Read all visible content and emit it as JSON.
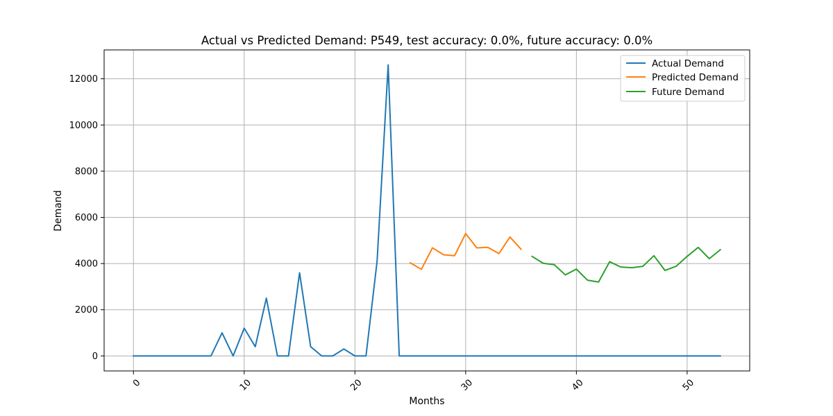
{
  "chart_data": {
    "type": "line",
    "title": "Actual vs Predicted Demand: P549, test accuracy: 0.0%, future accuracy: 0.0%",
    "xlabel": "Months",
    "ylabel": "Demand",
    "xlim": [
      -2.65,
      55.65
    ],
    "ylim": [
      -650,
      13250
    ],
    "xticks": [
      0,
      10,
      20,
      30,
      40,
      50
    ],
    "yticks": [
      0,
      2000,
      4000,
      6000,
      8000,
      10000,
      12000
    ],
    "grid": true,
    "legend_position": "top-right",
    "series": [
      {
        "name": "Actual Demand",
        "color": "#1f77b4",
        "x": [
          0,
          1,
          2,
          3,
          4,
          5,
          6,
          7,
          8,
          9,
          10,
          11,
          12,
          13,
          14,
          15,
          16,
          17,
          18,
          19,
          20,
          21,
          22,
          23,
          24,
          25,
          26,
          27,
          28,
          29,
          30,
          31,
          32,
          33,
          34,
          35,
          36,
          37,
          38,
          39,
          40,
          41,
          42,
          43,
          44,
          45,
          46,
          47,
          48,
          49,
          50,
          51,
          52,
          53
        ],
        "y": [
          0,
          0,
          0,
          0,
          0,
          0,
          0,
          0,
          1000,
          0,
          1200,
          400,
          2500,
          0,
          0,
          3600,
          400,
          0,
          0,
          300,
          0,
          0,
          4100,
          12600,
          0,
          0,
          0,
          0,
          0,
          0,
          0,
          0,
          0,
          0,
          0,
          0,
          0,
          0,
          0,
          0,
          0,
          0,
          0,
          0,
          0,
          0,
          0,
          0,
          0,
          0,
          0,
          0,
          0,
          0
        ]
      },
      {
        "name": "Predicted Demand",
        "color": "#ff7f0e",
        "x": [
          25,
          26,
          27,
          28,
          29,
          30,
          31,
          32,
          33,
          34,
          35
        ],
        "y": [
          4030,
          3750,
          4680,
          4380,
          4340,
          5300,
          4680,
          4700,
          4430,
          5150,
          4620
        ]
      },
      {
        "name": "Future Demand",
        "color": "#2ca02c",
        "x": [
          36,
          37,
          38,
          39,
          40,
          41,
          42,
          43,
          44,
          45,
          46,
          47,
          48,
          49,
          50,
          51,
          52,
          53
        ],
        "y": [
          4310,
          4010,
          3950,
          3510,
          3760,
          3280,
          3200,
          4080,
          3850,
          3820,
          3880,
          4340,
          3700,
          3880,
          4310,
          4700,
          4210,
          4600
        ]
      }
    ]
  }
}
